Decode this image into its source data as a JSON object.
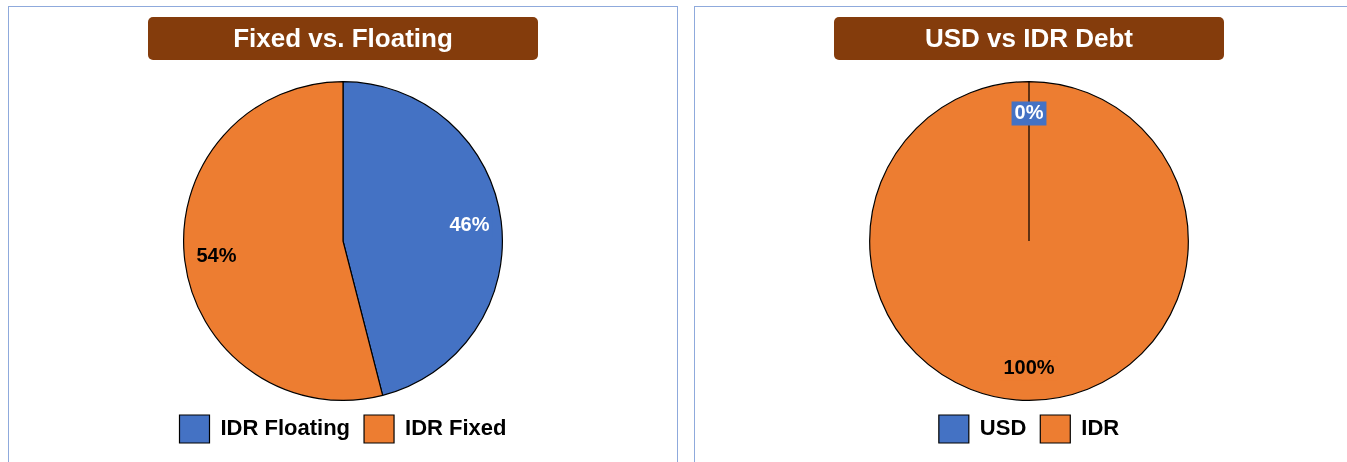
{
  "chart_data": [
    {
      "type": "pie",
      "title": "Fixed vs. Floating",
      "categories": [
        "IDR Floating",
        "IDR Fixed"
      ],
      "values": [
        46,
        54
      ],
      "colors": [
        "#4472c4",
        "#ed7d31"
      ],
      "value_labels": [
        "46%",
        "54%"
      ],
      "legend": "bottom"
    },
    {
      "type": "pie",
      "title": "USD vs IDR Debt",
      "categories": [
        "USD",
        "IDR"
      ],
      "values": [
        0,
        100
      ],
      "colors": [
        "#4472c4",
        "#ed7d31"
      ],
      "value_labels": [
        "0%",
        "100%"
      ],
      "legend": "bottom"
    }
  ]
}
